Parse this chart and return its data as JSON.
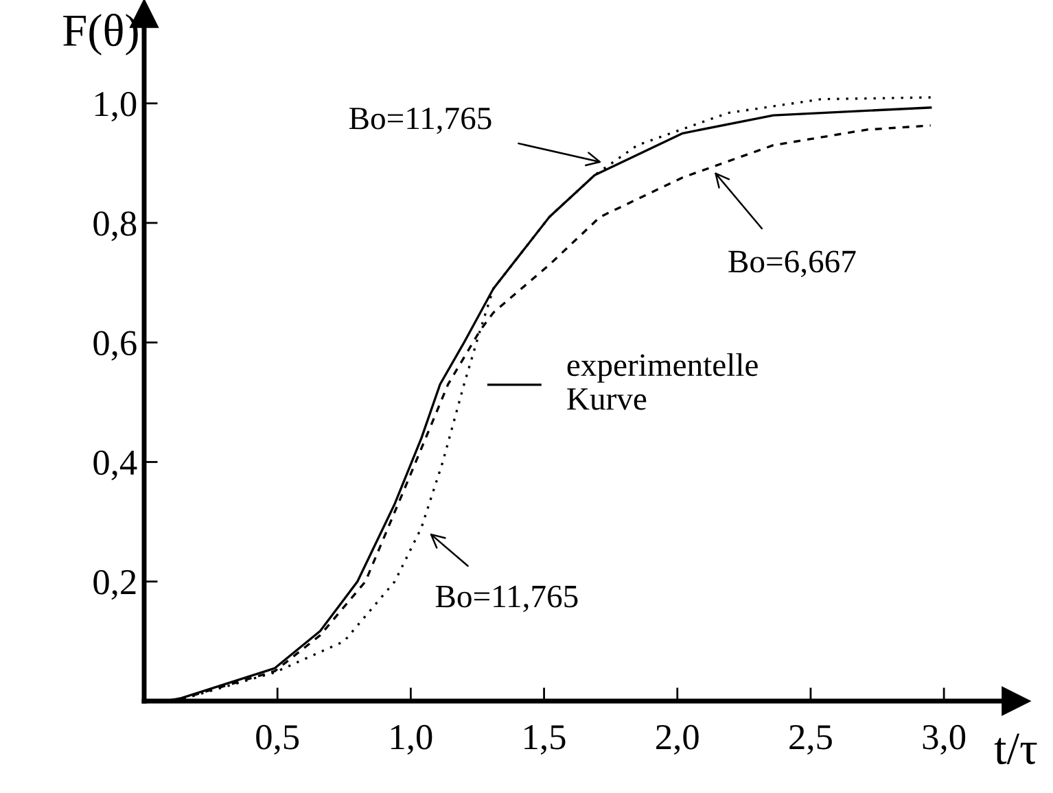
{
  "chart_data": {
    "type": "line",
    "xlabel": "t/τ",
    "ylabel": "F(θ)",
    "xlim": [
      0,
      3.27
    ],
    "ylim": [
      0,
      1.15
    ],
    "xticks": [
      {
        "value": 0.5,
        "label": "0,5"
      },
      {
        "value": 1.0,
        "label": "1,0"
      },
      {
        "value": 1.5,
        "label": "1,5"
      },
      {
        "value": 2.0,
        "label": "2,0"
      },
      {
        "value": 2.5,
        "label": "2,5"
      },
      {
        "value": 3.0,
        "label": "3,0"
      }
    ],
    "yticks": [
      {
        "value": 0.2,
        "label": "0,2"
      },
      {
        "value": 0.4,
        "label": "0,4"
      },
      {
        "value": 0.6,
        "label": "0,6"
      },
      {
        "value": 0.8,
        "label": "0,8"
      },
      {
        "value": 1.0,
        "label": "1,0"
      }
    ],
    "grid": false,
    "legend": "center",
    "marker": "none",
    "series": [
      {
        "name": "experimentelle\nKurve",
        "color": "#000000",
        "line_style": "solid",
        "x": [
          0.08,
          0.14,
          0.49,
          0.66,
          0.8,
          0.94,
          1.04,
          1.11,
          1.2,
          1.31,
          1.52,
          1.69,
          2.02,
          2.36,
          2.95
        ],
        "values": [
          0,
          0.005,
          0.055,
          0.117,
          0.2,
          0.33,
          0.44,
          0.53,
          0.6,
          0.69,
          0.81,
          0.88,
          0.95,
          0.98,
          0.993
        ]
      },
      {
        "color": "#000000",
        "line_style": "dashed",
        "x": [
          0.08,
          0.14,
          0.49,
          0.66,
          0.83,
          1.0,
          1.14,
          1.26,
          1.31,
          1.52,
          1.71,
          2.02,
          2.36,
          2.71,
          2.95
        ],
        "values": [
          0,
          0.004,
          0.05,
          0.11,
          0.2,
          0.38,
          0.53,
          0.62,
          0.65,
          0.73,
          0.81,
          0.876,
          0.93,
          0.956,
          0.963
        ]
      },
      {
        "color": "#000000",
        "line_style": "dotted",
        "x": [
          0.08,
          0.14,
          0.49,
          0.75,
          0.94,
          1.04,
          1.12,
          1.2,
          1.26,
          1.31,
          1.52,
          1.69,
          1.85,
          2.19,
          2.54,
          2.95
        ],
        "values": [
          0,
          0.003,
          0.048,
          0.1,
          0.2,
          0.29,
          0.4,
          0.53,
          0.62,
          0.69,
          0.81,
          0.88,
          0.93,
          0.984,
          1.007,
          1.01
        ]
      }
    ],
    "annotations": [
      {
        "text": "Bo=11,765",
        "x": 1.73,
        "y": 0.9
      },
      {
        "text": "Bo=6,667",
        "x": 2.13,
        "y": 0.89
      },
      {
        "text": "Bo=11,765",
        "x": 1.06,
        "y": 0.285
      }
    ]
  }
}
